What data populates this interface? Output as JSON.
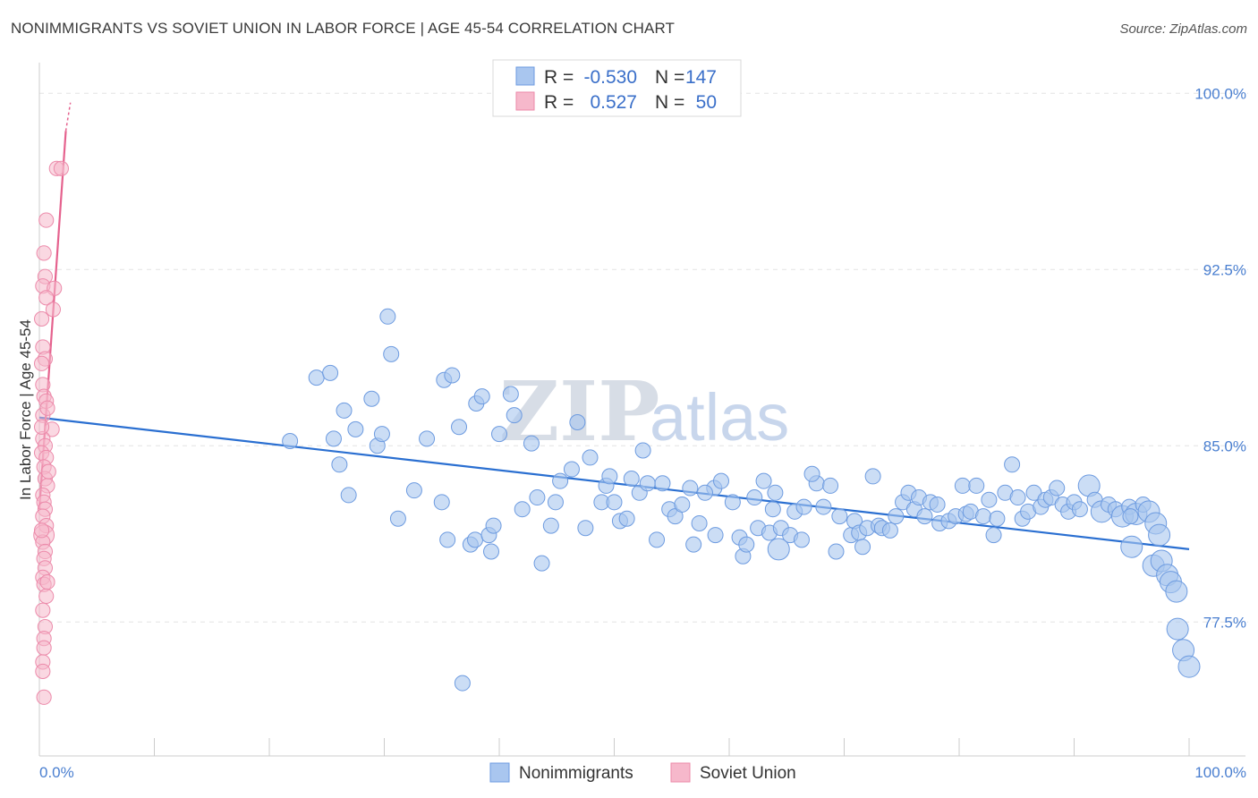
{
  "title": "NONIMMIGRANTS VS SOVIET UNION IN LABOR FORCE | AGE 45-54 CORRELATION CHART",
  "source": "Source: ZipAtlas.com",
  "watermark": {
    "zip": "ZIP",
    "atlas": "atlas"
  },
  "legend": {
    "rows": [
      {
        "r_label": "R =",
        "r_value": "-0.530",
        "n_label": "N =",
        "n_value": "147"
      },
      {
        "r_label": "R =",
        "r_value": "0.527",
        "n_label": "N =",
        "n_value": "50"
      }
    ]
  },
  "colors": {
    "nonimmigrants_fill": "#a9c6ef",
    "nonimmigrants_stroke": "#6d9be0",
    "nonimmigrants_line": "#2a6fd1",
    "soviet_fill": "#f6b8cb",
    "soviet_stroke": "#ec8aaa",
    "soviet_line": "#e5628e",
    "grid": "#e3e3e3",
    "tick_label": "#4a7fd0"
  },
  "chart_data": {
    "type": "scatter",
    "title": "NONIMMIGRANTS VS SOVIET UNION IN LABOR FORCE | AGE 45-54 CORRELATION CHART",
    "xlabel": "",
    "ylabel": "In Labor Force | Age 45-54",
    "xlim": [
      0,
      100
    ],
    "ylim": [
      71.8,
      101.0
    ],
    "y_ticks": [
      77.5,
      85.0,
      92.5,
      100.0
    ],
    "y_tick_labels": [
      "77.5%",
      "85.0%",
      "92.5%",
      "100.0%"
    ],
    "x_tick_labels": [
      "0.0%",
      "100.0%"
    ],
    "grid": true,
    "legend_position": "bottom-center",
    "series": [
      {
        "name": "Nonimmigrants",
        "trend": {
          "x": [
            0,
            100
          ],
          "y": [
            86.2,
            80.6
          ]
        },
        "points": [
          [
            21.8,
            85.2,
            1
          ],
          [
            24.1,
            87.9,
            1
          ],
          [
            25.3,
            88.1,
            1
          ],
          [
            25.6,
            85.3,
            1
          ],
          [
            26.1,
            84.2,
            1
          ],
          [
            26.5,
            86.5,
            1
          ],
          [
            26.9,
            82.9,
            1
          ],
          [
            27.5,
            85.7,
            1
          ],
          [
            28.9,
            87.0,
            1
          ],
          [
            29.4,
            85.0,
            1
          ],
          [
            29.8,
            85.5,
            1
          ],
          [
            30.3,
            90.5,
            1
          ],
          [
            30.6,
            88.9,
            1
          ],
          [
            31.2,
            81.9,
            1
          ],
          [
            32.6,
            83.1,
            1
          ],
          [
            33.7,
            85.3,
            1
          ],
          [
            35.0,
            82.6,
            1
          ],
          [
            35.2,
            87.8,
            1
          ],
          [
            35.9,
            88.0,
            1
          ],
          [
            35.5,
            81.0,
            1
          ],
          [
            36.5,
            85.8,
            1
          ],
          [
            37.5,
            80.8,
            1
          ],
          [
            38.0,
            86.8,
            1
          ],
          [
            38.5,
            87.1,
            1
          ],
          [
            37.9,
            81.0,
            1
          ],
          [
            39.1,
            81.2,
            1
          ],
          [
            39.5,
            81.6,
            1
          ],
          [
            40.0,
            85.5,
            1
          ],
          [
            39.3,
            80.5,
            1
          ],
          [
            41.0,
            87.2,
            1
          ],
          [
            41.3,
            86.3,
            1
          ],
          [
            42.0,
            82.3,
            1
          ],
          [
            43.7,
            80.0,
            1
          ],
          [
            42.8,
            85.1,
            1
          ],
          [
            43.3,
            82.8,
            1
          ],
          [
            44.5,
            81.6,
            1
          ],
          [
            45.3,
            83.5,
            1
          ],
          [
            44.9,
            82.6,
            1
          ],
          [
            46.3,
            84.0,
            1
          ],
          [
            46.8,
            86.0,
            1
          ],
          [
            47.5,
            81.5,
            1
          ],
          [
            47.9,
            84.5,
            1
          ],
          [
            48.9,
            82.6,
            1
          ],
          [
            49.3,
            83.3,
            1
          ],
          [
            49.6,
            83.7,
            1
          ],
          [
            50.0,
            82.6,
            1
          ],
          [
            50.5,
            81.8,
            1
          ],
          [
            51.5,
            83.6,
            1
          ],
          [
            52.5,
            84.8,
            1
          ],
          [
            51.1,
            81.9,
            1
          ],
          [
            52.2,
            83.0,
            1
          ],
          [
            52.9,
            83.4,
            1
          ],
          [
            53.7,
            81.0,
            1
          ],
          [
            54.2,
            83.4,
            1
          ],
          [
            54.8,
            82.3,
            1
          ],
          [
            55.3,
            82.0,
            1
          ],
          [
            55.9,
            82.5,
            1
          ],
          [
            56.6,
            83.2,
            1
          ],
          [
            56.9,
            80.8,
            1
          ],
          [
            57.4,
            81.7,
            1
          ],
          [
            58.7,
            83.2,
            1
          ],
          [
            57.9,
            83.0,
            1
          ],
          [
            58.8,
            81.2,
            1
          ],
          [
            59.3,
            83.5,
            1
          ],
          [
            60.3,
            82.6,
            1
          ],
          [
            60.9,
            81.1,
            1
          ],
          [
            61.2,
            80.3,
            1
          ],
          [
            61.5,
            80.8,
            1
          ],
          [
            62.2,
            82.8,
            1
          ],
          [
            62.5,
            81.5,
            1
          ],
          [
            63.0,
            83.5,
            1
          ],
          [
            63.5,
            81.3,
            1
          ],
          [
            63.8,
            82.3,
            1
          ],
          [
            64.0,
            83.0,
            1
          ],
          [
            64.5,
            81.5,
            1
          ],
          [
            64.3,
            80.6,
            2
          ],
          [
            65.3,
            81.2,
            1
          ],
          [
            65.7,
            82.2,
            1
          ],
          [
            66.3,
            81.0,
            1
          ],
          [
            66.5,
            82.4,
            1
          ],
          [
            67.6,
            83.4,
            1
          ],
          [
            67.2,
            83.8,
            1
          ],
          [
            68.2,
            82.4,
            1
          ],
          [
            68.8,
            83.3,
            1
          ],
          [
            69.3,
            80.5,
            1
          ],
          [
            69.6,
            82.0,
            1
          ],
          [
            70.6,
            81.2,
            1
          ],
          [
            70.9,
            81.8,
            1
          ],
          [
            71.3,
            81.3,
            1
          ],
          [
            71.6,
            80.7,
            1
          ],
          [
            72.0,
            81.5,
            1
          ],
          [
            72.5,
            83.7,
            1
          ],
          [
            73.0,
            81.6,
            1
          ],
          [
            73.3,
            81.5,
            1
          ],
          [
            74.0,
            81.4,
            1
          ],
          [
            74.5,
            82.0,
            1
          ],
          [
            75.1,
            82.6,
            1
          ],
          [
            75.6,
            83.0,
            1
          ],
          [
            76.1,
            82.3,
            1
          ],
          [
            76.5,
            82.8,
            1
          ],
          [
            77.0,
            82.0,
            1
          ],
          [
            77.5,
            82.6,
            1
          ],
          [
            78.1,
            82.5,
            1
          ],
          [
            78.3,
            81.7,
            1
          ],
          [
            79.1,
            81.8,
            1
          ],
          [
            79.7,
            82.0,
            1
          ],
          [
            80.3,
            83.3,
            1
          ],
          [
            80.6,
            82.1,
            1
          ],
          [
            81.0,
            82.2,
            1
          ],
          [
            81.5,
            83.3,
            1
          ],
          [
            82.1,
            82.0,
            1
          ],
          [
            82.6,
            82.7,
            1
          ],
          [
            83.0,
            81.2,
            1
          ],
          [
            83.3,
            81.9,
            1
          ],
          [
            84.0,
            83.0,
            1
          ],
          [
            84.6,
            84.2,
            1
          ],
          [
            85.1,
            82.8,
            1
          ],
          [
            85.5,
            81.9,
            1
          ],
          [
            86.0,
            82.2,
            1
          ],
          [
            86.5,
            83.0,
            1
          ],
          [
            87.1,
            82.4,
            1
          ],
          [
            87.5,
            82.7,
            1
          ],
          [
            88.0,
            82.8,
            1
          ],
          [
            88.5,
            83.2,
            1
          ],
          [
            89.0,
            82.5,
            1
          ],
          [
            89.5,
            82.2,
            1
          ],
          [
            90.0,
            82.6,
            1
          ],
          [
            90.5,
            82.3,
            1
          ],
          [
            91.3,
            83.3,
            2
          ],
          [
            91.8,
            82.7,
            1
          ],
          [
            92.4,
            82.2,
            2
          ],
          [
            93.0,
            82.5,
            1
          ],
          [
            93.6,
            82.3,
            1
          ],
          [
            94.2,
            82.0,
            2
          ],
          [
            94.8,
            82.4,
            1
          ],
          [
            95.4,
            82.1,
            2
          ],
          [
            96.0,
            82.5,
            1
          ],
          [
            96.5,
            82.2,
            2
          ],
          [
            97.1,
            81.7,
            2
          ],
          [
            97.4,
            81.2,
            2
          ],
          [
            94.9,
            82.0,
            1
          ],
          [
            95.0,
            80.7,
            2
          ],
          [
            96.9,
            79.9,
            2
          ],
          [
            97.6,
            80.1,
            2
          ],
          [
            98.1,
            79.5,
            2
          ],
          [
            98.4,
            79.2,
            2
          ],
          [
            98.9,
            78.8,
            2
          ],
          [
            99.0,
            77.2,
            2
          ],
          [
            99.5,
            76.3,
            2
          ],
          [
            100.0,
            75.6,
            2
          ],
          [
            36.8,
            74.9,
            1
          ]
        ]
      },
      {
        "name": "Soviet Union",
        "trend": {
          "x": [
            0,
            2.3
          ],
          "y": [
            82.3,
            98.4
          ]
        },
        "trend_ext": {
          "x": [
            2.3,
            2.7
          ],
          "y": [
            98.4,
            99.6
          ]
        },
        "points": [
          [
            1.5,
            96.8,
            1
          ],
          [
            1.9,
            96.8,
            1
          ],
          [
            0.6,
            94.6,
            1
          ],
          [
            0.4,
            93.2,
            1
          ],
          [
            0.5,
            92.2,
            1
          ],
          [
            0.3,
            91.8,
            1
          ],
          [
            1.3,
            91.7,
            1
          ],
          [
            0.6,
            91.3,
            1
          ],
          [
            1.2,
            90.8,
            1
          ],
          [
            0.2,
            90.4,
            1
          ],
          [
            0.3,
            89.2,
            1
          ],
          [
            0.5,
            88.7,
            1
          ],
          [
            0.3,
            87.6,
            1
          ],
          [
            0.4,
            87.1,
            1
          ],
          [
            0.6,
            86.9,
            1
          ],
          [
            0.3,
            86.3,
            1
          ],
          [
            1.1,
            85.7,
            1
          ],
          [
            0.3,
            85.3,
            1
          ],
          [
            0.5,
            85.0,
            1
          ],
          [
            0.2,
            84.7,
            1
          ],
          [
            0.6,
            84.5,
            1
          ],
          [
            0.4,
            84.1,
            1
          ],
          [
            0.5,
            83.6,
            1
          ],
          [
            0.7,
            83.3,
            1
          ],
          [
            0.3,
            82.9,
            1
          ],
          [
            0.4,
            82.6,
            1
          ],
          [
            0.5,
            82.3,
            1
          ],
          [
            0.3,
            82.0,
            1
          ],
          [
            0.6,
            81.6,
            1
          ],
          [
            0.4,
            81.2,
            2
          ],
          [
            0.3,
            80.9,
            1
          ],
          [
            0.5,
            80.5,
            1
          ],
          [
            0.4,
            80.2,
            1
          ],
          [
            0.5,
            79.8,
            1
          ],
          [
            0.3,
            79.4,
            1
          ],
          [
            0.4,
            79.1,
            1
          ],
          [
            0.6,
            78.6,
            1
          ],
          [
            0.3,
            78.0,
            1
          ],
          [
            0.5,
            77.3,
            1
          ],
          [
            0.4,
            76.8,
            1
          ],
          [
            0.4,
            76.4,
            1
          ],
          [
            0.3,
            75.8,
            1
          ],
          [
            0.3,
            75.4,
            1
          ],
          [
            0.4,
            74.3,
            1
          ],
          [
            0.2,
            88.5,
            1
          ],
          [
            0.7,
            86.6,
            1
          ],
          [
            0.2,
            85.8,
            1
          ],
          [
            0.8,
            83.9,
            1
          ],
          [
            0.2,
            81.4,
            1
          ],
          [
            0.7,
            79.2,
            1
          ]
        ]
      }
    ]
  },
  "bottom_legend": {
    "items": [
      {
        "label": "Nonimmigrants"
      },
      {
        "label": "Soviet Union"
      }
    ]
  }
}
